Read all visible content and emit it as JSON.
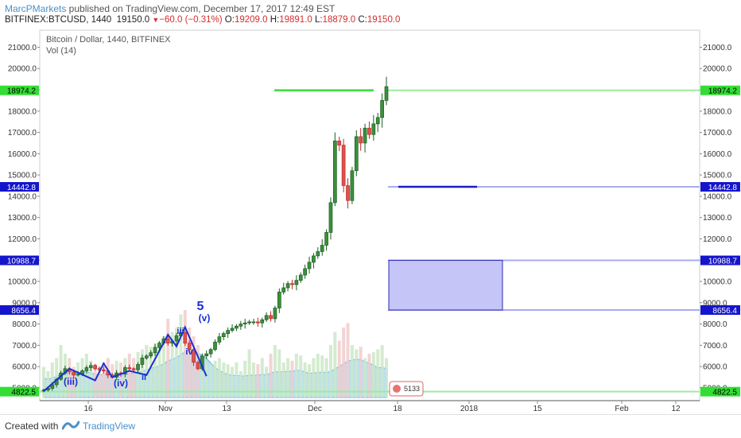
{
  "header": {
    "author": "MarcPMarkets",
    "published_text": " published on TradingView.com, December 17, 2017 12:49 EST",
    "symbol": "BITFINEX:BTCUSD, 1440",
    "last": "19150.0",
    "change": "−60.0 (−0.31%)",
    "o_label": "O:",
    "o_value": "19209.0",
    "h_label": "H:",
    "h_value": "19891.0",
    "l_label": "L:",
    "l_value": "18879.0",
    "c_label": "C:",
    "c_value": "19150.0"
  },
  "chart_title": "Bitcoin / Dollar, 1440, BITFINEX",
  "volume_label": "Vol (14)",
  "footer": {
    "created_with": "Created with",
    "brand": "TradingView"
  },
  "colors": {
    "up": "#1b5e20",
    "down": "#c62828",
    "green_level": "#33dd33",
    "blue_level": "#1a1acc",
    "box_fill": "#c5c5f7",
    "volume_area": "#9fd4f0",
    "wave_line": "#1a2fd0"
  },
  "chart_data": {
    "type": "candlestick",
    "title": "Bitcoin / Dollar, 1440, BITFINEX",
    "y_axis_ticks": [
      5000,
      6000,
      7000,
      8000,
      9000,
      10000,
      11000,
      12000,
      13000,
      14000,
      15000,
      16000,
      17000,
      18000,
      19000,
      20000,
      21000
    ],
    "y_axis_tick_labels": [
      "5000.0",
      "6000.0",
      "7000.0",
      "8000.0",
      "9000.0",
      "10000.0",
      "11000.0",
      "12000.0",
      "13000.0",
      "14000.0",
      "15000.0",
      "16000.0",
      "17000.0",
      "18000.0",
      "19000.0",
      "20000.0",
      "21000.0"
    ],
    "x_axis_labels": [
      "16",
      "Nov",
      "13",
      "Dec",
      "18",
      "2018",
      "15",
      "Feb",
      "12"
    ],
    "ylim": [
      4400,
      21800
    ],
    "price_levels": [
      {
        "label": "18974.2",
        "value": 18974.2,
        "color": "green"
      },
      {
        "label": "14442.8",
        "value": 14442.8,
        "color": "blue"
      },
      {
        "label": "10988.7",
        "value": 10988.7,
        "color": "blue"
      },
      {
        "label": "8656.4",
        "value": 8656.4,
        "color": "blue"
      },
      {
        "label": "4822.5",
        "value": 4822.5,
        "color": "green"
      }
    ],
    "zone": {
      "top": 10988.7,
      "bottom": 8656.4
    },
    "wave_labels": [
      "(iii)",
      "(iv)",
      "ii",
      "iii",
      "iv",
      "5",
      "(v)"
    ],
    "countdown_badge": "5133",
    "closes": [
      4900,
      4980,
      5150,
      5400,
      5700,
      5900,
      5750,
      5600,
      5650,
      5800,
      5950,
      6050,
      5900,
      5850,
      5800,
      5600,
      5500,
      5700,
      5650,
      5950,
      5900,
      5850,
      6100,
      6400,
      6500,
      6650,
      6900,
      7100,
      7300,
      7100,
      7200,
      7450,
      7600,
      7100,
      6800,
      6200,
      5900,
      6500,
      6600,
      6800,
      7150,
      7400,
      7550,
      7700,
      7800,
      7900,
      8000,
      8050,
      8100,
      8100,
      8050,
      8200,
      8400,
      8250,
      8750,
      9500,
      9700,
      9900,
      9850,
      10050,
      10300,
      10600,
      10900,
      11200,
      11400,
      11700,
      12300,
      13700,
      16600,
      16400,
      14500,
      13800,
      15200,
      16800,
      16500,
      17200,
      16900,
      17400,
      17700,
      18500,
      19150
    ],
    "volumes": [
      0.35,
      0.3,
      0.4,
      0.45,
      0.6,
      0.5,
      0.45,
      0.35,
      0.4,
      0.45,
      0.5,
      0.42,
      0.38,
      0.35,
      0.4,
      0.45,
      0.38,
      0.42,
      0.4,
      0.45,
      0.5,
      0.45,
      0.52,
      0.55,
      0.6,
      0.58,
      0.62,
      0.65,
      0.7,
      0.9,
      0.75,
      0.8,
      0.95,
      1.0,
      0.8,
      0.7,
      0.6,
      0.45,
      0.4,
      0.38,
      0.42,
      0.45,
      0.4,
      0.38,
      0.35,
      0.4,
      0.3,
      0.42,
      0.55,
      0.4,
      0.38,
      0.45,
      0.35,
      0.5,
      0.6,
      0.55,
      0.4,
      0.45,
      0.42,
      0.5,
      0.48,
      0.4,
      0.38,
      0.45,
      0.5,
      0.48,
      0.45,
      0.6,
      0.75,
      0.65,
      0.8,
      0.85,
      0.6,
      0.55,
      0.58,
      0.45,
      0.5,
      0.52,
      0.55,
      0.6,
      0.45
    ]
  }
}
